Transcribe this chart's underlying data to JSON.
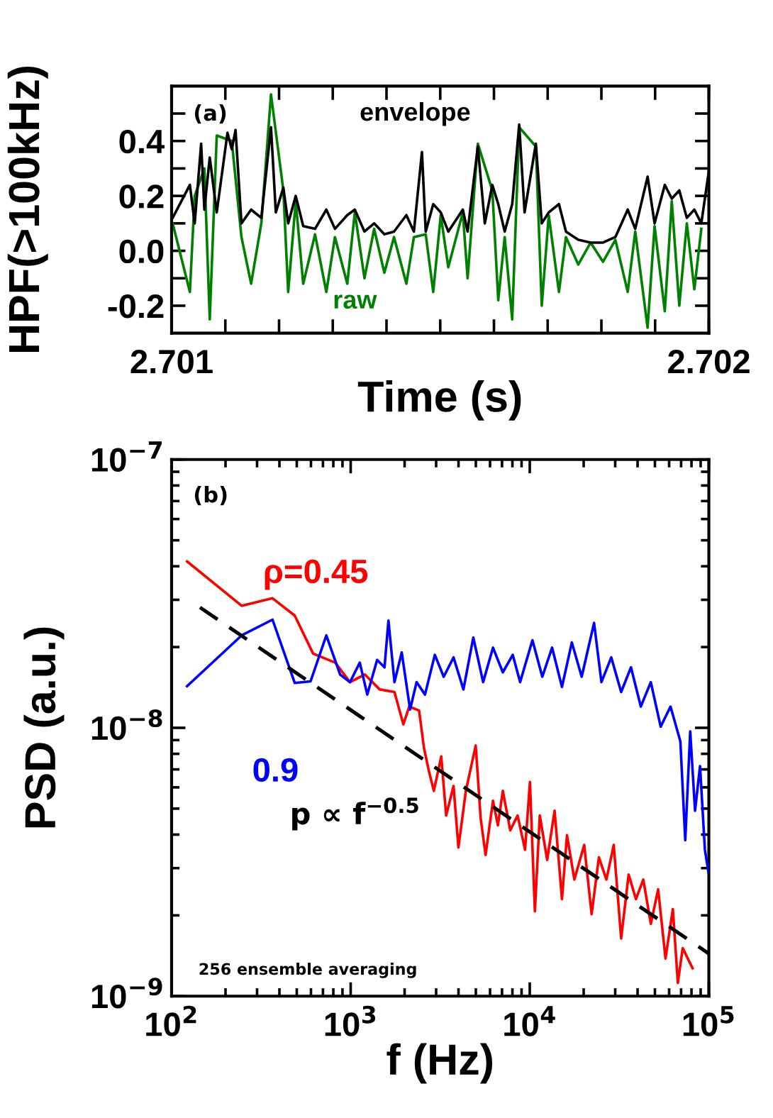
{
  "chart_data": [
    {
      "type": "line",
      "xlabel": "Time (s)",
      "ylabel": "HPF(>100kHz)",
      "annotations": [
        "(a)"
      ],
      "xlim": [
        2.701,
        2.702
      ],
      "ylim": [
        -0.3,
        0.6
      ],
      "xticks": [
        2.701,
        {
          "value": 2.7011,
          "label": null
        },
        {
          "value": 2.7012,
          "label": null
        },
        {
          "value": 2.7013,
          "label": null
        },
        {
          "value": 2.7014,
          "label": null
        },
        {
          "value": 2.7015,
          "label": null
        },
        {
          "value": 2.7016,
          "label": null
        },
        {
          "value": 2.7017,
          "label": null
        },
        {
          "value": 2.7018,
          "label": null
        },
        {
          "value": 2.7019,
          "label": null
        },
        2.702
      ],
      "yticks": [
        {
          "value": -0.2,
          "label": "-0.2"
        },
        {
          "value": -0.1,
          "label": null
        },
        {
          "value": 0,
          "label": "0.0"
        },
        {
          "value": 0.1,
          "label": null
        },
        0.2,
        {
          "value": 0.3,
          "label": null
        },
        0.4,
        {
          "value": 0.5,
          "label": null
        }
      ],
      "x": [
        2.701002,
        2.701034,
        2.701043,
        2.701055,
        2.701061,
        2.701071,
        2.701084,
        2.701104,
        2.701112,
        2.701119,
        2.70113,
        2.701148,
        2.701167,
        2.701185,
        2.701194,
        2.701208,
        2.701217,
        2.701231,
        2.701245,
        2.701267,
        2.701288,
        2.701304,
        2.701327,
        2.701341,
        2.701359,
        2.701377,
        2.701396,
        2.701414,
        2.701437,
        2.701451,
        2.701466,
        2.701473,
        2.701487,
        2.701501,
        2.701515,
        2.701542,
        2.701551,
        2.70157,
        2.701583,
        2.701597,
        2.701608,
        2.70162,
        2.701634,
        2.701647,
        2.701657,
        2.701678,
        2.701689,
        2.701702,
        2.701721,
        2.701734,
        2.701757,
        2.70178,
        2.701803,
        2.701826,
        2.701849,
        2.701863,
        2.701886,
        2.701899,
        2.701918,
        2.701931,
        2.701945,
        2.701959,
        2.701973,
        2.701986,
        2.702
      ],
      "series": [
        {
          "name": "raw",
          "color": "#008000",
          "x": [
            2.701002,
            2.701034,
            2.701043,
            2.701061,
            2.701071,
            2.701084,
            2.701112,
            2.70113,
            2.701148,
            2.701167,
            2.701185,
            2.701208,
            2.701217,
            2.701231,
            2.701245,
            2.701267,
            2.701288,
            2.701304,
            2.701327,
            2.701341,
            2.701359,
            2.701377,
            2.701396,
            2.701414,
            2.701437,
            2.701451,
            2.701473,
            2.701487,
            2.701501,
            2.701515,
            2.701542,
            2.701551,
            2.70157,
            2.701597,
            2.701608,
            2.70162,
            2.701634,
            2.701647,
            2.701678,
            2.701689,
            2.701702,
            2.701721,
            2.701734,
            2.701757,
            2.70178,
            2.701803,
            2.701826,
            2.701849,
            2.701863,
            2.701886,
            2.701899,
            2.701918,
            2.701931,
            2.701945,
            2.701959,
            2.701973,
            2.701986
          ],
          "values": [
            0.1,
            -0.15,
            0.2,
            0.3,
            -0.25,
            0.42,
            0.4,
            0.05,
            -0.12,
            0.1,
            0.57,
            0.22,
            -0.15,
            0.18,
            -0.12,
            0.06,
            -0.15,
            0.05,
            -0.12,
            0.14,
            -0.1,
            0.08,
            -0.08,
            0.05,
            -0.12,
            0.05,
            0.06,
            -0.15,
            0.13,
            -0.06,
            0.14,
            -0.1,
            0.39,
            0.22,
            -0.18,
            0.05,
            -0.25,
            0.45,
            0.38,
            -0.2,
            0.13,
            -0.15,
            0.05,
            -0.05,
            0.03,
            -0.04,
            0.04,
            -0.15,
            0.07,
            -0.28,
            0.09,
            -0.22,
            0.18,
            -0.2,
            0.1,
            -0.14,
            0.08
          ]
        },
        {
          "name": "envelope",
          "color": "#000000",
          "values": [
            0.12,
            0.24,
            0.1,
            0.39,
            0.15,
            0.34,
            0.14,
            0.43,
            0.37,
            0.44,
            0.1,
            0.15,
            0.12,
            0.45,
            0.14,
            0.23,
            0.1,
            0.2,
            0.09,
            0.08,
            0.15,
            0.08,
            0.13,
            0.15,
            0.07,
            0.1,
            0.06,
            0.07,
            0.13,
            0.07,
            0.36,
            0.07,
            0.17,
            0.14,
            0.07,
            0.15,
            0.07,
            0.38,
            0.1,
            0.24,
            0.17,
            0.07,
            0.17,
            0.46,
            0.14,
            0.39,
            0.1,
            0.14,
            0.17,
            0.07,
            0.04,
            0.03,
            0.03,
            0.05,
            0.15,
            0.08,
            0.27,
            0.1,
            0.24,
            0.19,
            0.22,
            0.12,
            0.15,
            0.1,
            0.29
          ]
        }
      ]
    },
    {
      "type": "line",
      "xlabel": "f (Hz)",
      "ylabel": "PSD (a.u.)",
      "log": "xy",
      "annotations": [
        "(b)",
        "p ∝ f$^{−0.5}$",
        "256 ensemble averaging"
      ],
      "xlim": [
        100,
        100000
      ],
      "ylim": [
        1e-09,
        1e-07
      ],
      "xticks": [
        {
          "value": 100,
          "label": "10$^{2}$"
        },
        {
          "value": 1000,
          "label": "10$^{3}$"
        },
        {
          "value": 10000,
          "label": "10$^{4}$"
        },
        {
          "value": 100000,
          "label": "10$^{5}$"
        }
      ],
      "yticks": [
        {
          "value": 1e-09,
          "label": "10$^{−9}$"
        },
        {
          "value": 1e-08,
          "label": "10$^{−8}$"
        },
        {
          "value": 1e-07,
          "label": "10$^{−7}$"
        }
      ],
      "series": [
        {
          "name": "ρ=0.45",
          "color": "#ff0000",
          "x": [
            122,
            246,
            366,
            487,
            617,
            820,
            991,
            1199,
            1452,
            1756,
            1968,
            2123,
            2410,
            2567,
            2735,
            2913,
            3204,
            3413,
            3753,
            3996,
            4397,
            4991,
            5318,
            5665,
            6233,
            6638,
            7072,
            7780,
            8551,
            9413,
            10023,
            10680,
            11376,
            12510,
            13760,
            15130,
            16140,
            17750,
            20140,
            22150,
            24330,
            26790,
            29440,
            32380,
            35650,
            39180,
            43050,
            47420,
            52120,
            57280,
            62950,
            67140,
            71450,
            81100
          ],
          "values": [
            4.17e-08,
            2.85e-08,
            3.04e-08,
            2.62e-08,
            1.89e-08,
            1.75e-08,
            1.48e-08,
            1.58e-08,
            1.39e-08,
            1.36e-08,
            1.03e-08,
            1.2e-08,
            1.16e-08,
            8.4e-09,
            6.89e-09,
            5.82e-09,
            7.82e-09,
            4.71e-09,
            6.07e-09,
            3.58e-09,
            5.82e-09,
            8.59e-09,
            4.61e-09,
            3.36e-09,
            5.35e-09,
            4.33e-09,
            5.82e-09,
            4.15e-09,
            4.71e-09,
            3.51e-09,
            6.28e-09,
            2.07e-09,
            4.71e-09,
            3.22e-09,
            4.91e-09,
            2.3e-09,
            3.98e-09,
            2.72e-09,
            3.66e-09,
            2.02e-09,
            3.29e-09,
            2.72e-09,
            3.66e-09,
            1.64e-09,
            2.84e-09,
            2.3e-09,
            2.72e-09,
            1.86e-09,
            2.5e-09,
            1.38e-09,
            2.11e-09,
            1.12e-09,
            1.51e-09,
            1.27e-09
          ]
        },
        {
          "name": "0.9",
          "color": "#0000ff",
          "x": [
            122,
            246,
            366,
            487,
            597,
            731,
            873,
            991,
            1124,
            1238,
            1405,
            1545,
            1625,
            1756,
            1928,
            2147,
            2333,
            2600,
            2951,
            3307,
            3753,
            4262,
            4838,
            5492,
            6233,
            7072,
            8036,
            8836,
            10350,
            11750,
            13330,
            15130,
            17180,
            19500,
            22860,
            25130,
            28520,
            32380,
            36740,
            41700,
            47420,
            53830,
            61100,
            69340,
            73850,
            78700,
            83750,
            89290,
            95060,
            99500
          ],
          "values": [
            1.43e-08,
            2.21e-08,
            2.53e-08,
            1.47e-08,
            1.49e-08,
            2.21e-08,
            1.58e-08,
            1.48e-08,
            1.75e-08,
            1.33e-08,
            1.79e-08,
            1.68e-08,
            2.51e-08,
            1.48e-08,
            1.91e-08,
            1.17e-08,
            1.48e-08,
            1.33e-08,
            1.87e-08,
            1.55e-08,
            1.83e-08,
            1.39e-08,
            2.17e-08,
            1.48e-08,
            1.99e-08,
            1.61e-08,
            1.87e-08,
            1.48e-08,
            2.12e-08,
            1.55e-08,
            1.99e-08,
            1.42e-08,
            2.08e-08,
            1.55e-08,
            2.46e-08,
            1.48e-08,
            1.83e-08,
            1.36e-08,
            1.68e-08,
            1.2e-08,
            1.48e-08,
            1.01e-08,
            1.2e-08,
            8.9e-09,
            3.81e-09,
            9.7e-09,
            4.91e-09,
            7.2e-09,
            3.51e-09,
            2.9e-09
          ]
        },
        {
          "type": "line",
          "color": "#000000",
          "line_style": "dashed",
          "x": [
            144,
            100000
          ],
          "values": [
            2.81e-08,
            1.44e-09
          ]
        }
      ]
    }
  ]
}
